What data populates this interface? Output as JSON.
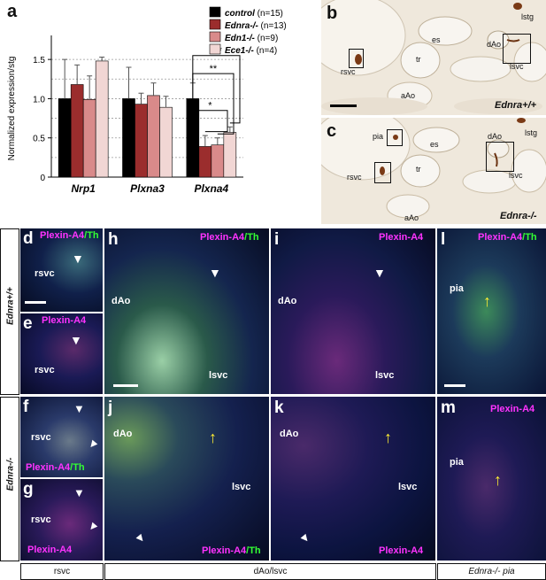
{
  "panels": {
    "a": "a",
    "b": "b",
    "c": "c",
    "d": "d",
    "e": "e",
    "f": "f",
    "g": "g",
    "h": "h",
    "i": "i",
    "j": "j",
    "k": "k",
    "l": "l",
    "m": "m"
  },
  "chart_data": {
    "type": "bar",
    "categories": [
      "Nrp1",
      "Plxna3",
      "Plxna4"
    ],
    "ylabel": "Normalized expression/stg",
    "ylim": [
      0,
      1.75
    ],
    "yticks": [
      "0",
      "0.5",
      "1.0",
      "1.5"
    ],
    "series": [
      {
        "name": "control",
        "n": "(n=15)",
        "color": "#000000",
        "values": [
          1.0,
          1.0,
          1.0
        ],
        "err": [
          0.5,
          0.4,
          0.2
        ]
      },
      {
        "name": "Ednra-/-",
        "n": "(n=13)",
        "color": "#9b2d2d",
        "values": [
          1.18,
          0.93,
          0.39
        ],
        "err": [
          0.25,
          0.14,
          0.14
        ]
      },
      {
        "name": "Edn1-/-",
        "n": "(n=9)",
        "color": "#d98a8a",
        "values": [
          0.99,
          1.04,
          0.41
        ],
        "err": [
          0.3,
          0.16,
          0.09
        ]
      },
      {
        "name": "Ece1-/-",
        "n": "(n=4)",
        "color": "#f1d6d4",
        "values": [
          1.48,
          0.89,
          0.57
        ],
        "err": [
          0.05,
          0.14,
          0.07
        ]
      }
    ],
    "significance": [
      "*",
      "**",
      "***"
    ]
  },
  "histology": {
    "b": {
      "labels": [
        "lstg",
        "es",
        "tr",
        "rsvc",
        "dAo",
        "lsvc",
        "aAo"
      ],
      "genotype": "Ednra+/+"
    },
    "c": {
      "labels": [
        "pia",
        "lstg",
        "es",
        "dAo",
        "tr",
        "rsvc",
        "lsvc",
        "aAo"
      ],
      "genotype": "Ednra-/-"
    }
  },
  "fluorescence": {
    "plexin_a4": "Plexin-A4",
    "slash_th": "/Th",
    "rsvc": "rsvc",
    "dAo": "dAo",
    "lsvc": "lsvc",
    "pia": "pia"
  },
  "row_labels": {
    "top": "Ednra+/+",
    "bottom": "Ednra-/-"
  },
  "bottom_labels": {
    "left": "rsvc",
    "middle": "dAo/lsvc",
    "right": "Ednra-/- pia"
  }
}
